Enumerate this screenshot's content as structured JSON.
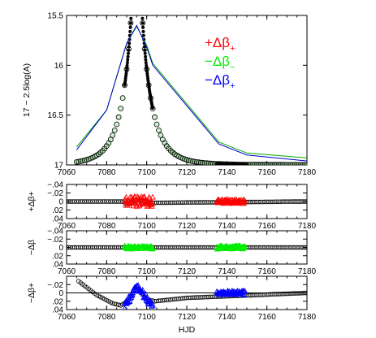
{
  "chart_data": [
    {
      "type": "scatter",
      "panel": "main",
      "ylabel": "17 − 2.5log(A)",
      "xlim": [
        7060,
        7180
      ],
      "ylim": [
        17,
        15.5
      ],
      "y_inverted": true,
      "xticks": [
        "7060",
        "7080",
        "7100",
        "7120",
        "7140",
        "7160",
        "7180"
      ],
      "yticks": [
        "15.5",
        "16",
        "16.5",
        "17"
      ],
      "event_model": {
        "t0": 7095,
        "tE": 11.6,
        "u0": 0.1,
        "mag_base": 17.0
      },
      "legend": [
        {
          "label": "+Δβ",
          "sub": "+",
          "color": "#ff0000"
        },
        {
          "label": "−Δβ",
          "sub": "−",
          "color": "#00ee00"
        },
        {
          "label": "−Δβ",
          "sub": "+",
          "color": "#0000ff"
        }
      ],
      "series": [
        {
          "style": "open-circles",
          "color": "#000000",
          "x_range": [
            7065,
            7180
          ],
          "step": 1
        },
        {
          "style": "dense-points",
          "color": "#000000",
          "x_ranges": [
            [
              7089,
              7103
            ],
            [
              7135,
              7150
            ]
          ]
        },
        {
          "style": "line",
          "color": "#00aa00",
          "points": [
            [
              7065,
              16.82
            ],
            [
              7080,
              16.45
            ],
            [
              7090,
              15.78
            ],
            [
              7095,
              15.61
            ],
            [
              7100,
              15.8
            ],
            [
              7103,
              15.98
            ],
            [
              7136,
              16.77
            ],
            [
              7150,
              16.88
            ],
            [
              7180,
              16.93
            ]
          ]
        },
        {
          "style": "line",
          "color": "#0000cc",
          "points": [
            [
              7065,
              16.85
            ],
            [
              7080,
              16.45
            ],
            [
              7090,
              15.78
            ],
            [
              7095,
              15.6
            ],
            [
              7100,
              15.82
            ],
            [
              7103,
              16.0
            ],
            [
              7136,
              16.79
            ],
            [
              7150,
              16.9
            ],
            [
              7180,
              16.96
            ]
          ]
        }
      ]
    },
    {
      "type": "scatter",
      "panel": "residual-1",
      "ylabel": "+Δβ+",
      "xlim": [
        7060,
        7180
      ],
      "ylim": [
        0.04,
        -0.04
      ],
      "xticks": [
        "7060",
        "7080",
        "7100",
        "7120",
        "7140",
        "7160",
        "7180"
      ],
      "yticks": [
        "−.04",
        "−.02",
        "0",
        ".02",
        ".04"
      ],
      "series": [
        {
          "style": "open-circles",
          "color": "#000000",
          "x_range": [
            7060,
            7180
          ],
          "step": 1,
          "curve": [
            [
              7060,
              0.0
            ],
            [
              7088,
              0.0
            ],
            [
              7090,
              0.006
            ],
            [
              7095,
              -0.004
            ],
            [
              7100,
              0.002
            ],
            [
              7104,
              0.003
            ],
            [
              7180,
              0.0
            ]
          ]
        },
        {
          "style": "triangles",
          "color": "#ff0000",
          "x_range": [
            7089,
            7103
          ],
          "y_center": 0.0,
          "y_spread": 0.012
        },
        {
          "style": "triangles",
          "color": "#ff0000",
          "x_range": [
            7135,
            7149
          ],
          "y_center": 0.0,
          "y_spread": 0.005
        }
      ]
    },
    {
      "type": "scatter",
      "panel": "residual-2",
      "ylabel": "−Δβ",
      "xlim": [
        7060,
        7180
      ],
      "ylim": [
        0.04,
        -0.04
      ],
      "xticks": [
        "7060",
        "7080",
        "7100",
        "7120",
        "7140",
        "7160",
        "7180"
      ],
      "yticks": [
        "−.04",
        "−.02",
        "0",
        ".02",
        ".04"
      ],
      "series": [
        {
          "style": "open-circles",
          "color": "#000000",
          "x_range": [
            7060,
            7180
          ],
          "step": 1,
          "curve": [
            [
              7060,
              0.0
            ],
            [
              7180,
              0.0
            ]
          ]
        },
        {
          "style": "triangles",
          "color": "#00ee00",
          "x_range": [
            7089,
            7103
          ],
          "y_center": 0.0,
          "y_spread": 0.004
        },
        {
          "style": "triangles",
          "color": "#00ee00",
          "x_range": [
            7135,
            7149
          ],
          "y_center": 0.0,
          "y_spread": 0.004
        }
      ]
    },
    {
      "type": "scatter",
      "panel": "residual-3",
      "ylabel": "−Δβ+",
      "xlabel": "HJD",
      "xlim": [
        7060,
        7180
      ],
      "ylim": [
        0.04,
        -0.04
      ],
      "xticks": [
        "7060",
        "7080",
        "7100",
        "7120",
        "7140",
        "7160",
        "7180"
      ],
      "yticks": [
        "−.02",
        "0",
        ".02",
        ".04"
      ],
      "series": [
        {
          "style": "open-circles",
          "color": "#000000",
          "x_range": [
            7066,
            7180
          ],
          "step": 1,
          "curve": [
            [
              7066,
              -0.028
            ],
            [
              7075,
              0.005
            ],
            [
              7083,
              0.025
            ],
            [
              7087,
              0.03
            ],
            [
              7090,
              0.022
            ],
            [
              7093,
              0.0
            ],
            [
              7095,
              -0.015
            ],
            [
              7097,
              -0.005
            ],
            [
              7100,
              0.015
            ],
            [
              7104,
              0.02
            ],
            [
              7108,
              0.018
            ],
            [
              7120,
              0.012
            ],
            [
              7140,
              0.008
            ],
            [
              7160,
              0.004
            ],
            [
              7180,
              0.0
            ]
          ]
        },
        {
          "style": "line",
          "color": "#000000",
          "points": [
            [
              7060,
              0.0
            ],
            [
              7180,
              0.0
            ]
          ]
        },
        {
          "style": "triangles",
          "color": "#0000ff",
          "x_range": [
            7089,
            7103
          ],
          "curve": [
            [
              7089,
              0.03
            ],
            [
              7092,
              0.01
            ],
            [
              7095,
              -0.015
            ],
            [
              7098,
              0.0
            ],
            [
              7101,
              0.02
            ],
            [
              7103,
              0.025
            ]
          ],
          "y_spread": 0.008
        },
        {
          "style": "triangles",
          "color": "#0000ff",
          "x_range": [
            7135,
            7149
          ],
          "y_center": 0.0,
          "y_spread": 0.005
        }
      ]
    }
  ]
}
